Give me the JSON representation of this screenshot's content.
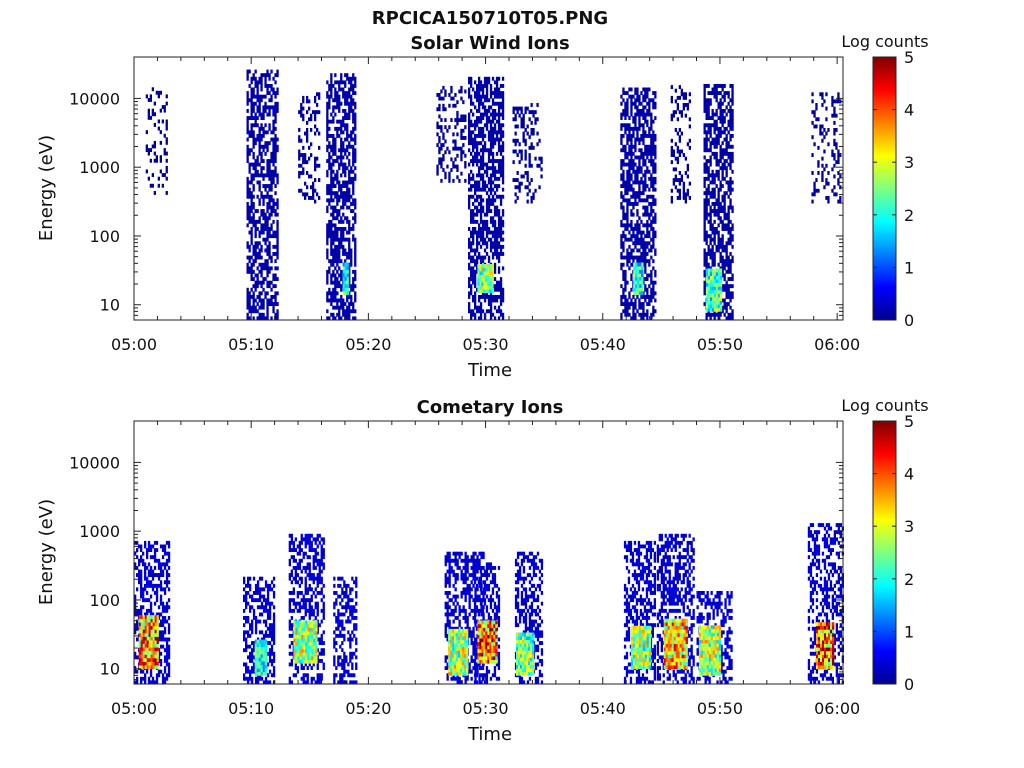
{
  "figure": {
    "title": "RPCICA150710T05.PNG"
  },
  "colormap": {
    "name": "jet",
    "min": 0,
    "max": 5,
    "label": "Log counts",
    "ticks": [
      "0",
      "1",
      "2",
      "3",
      "4",
      "5"
    ]
  },
  "chart_data": [
    {
      "type": "heatmap",
      "title": "Solar Wind Ions",
      "xlabel": "Time",
      "ylabel": "Energy (eV)",
      "x_ticks": [
        "05:00",
        "05:10",
        "05:20",
        "05:30",
        "05:40",
        "05:50",
        "06:00"
      ],
      "x_range_minutes": [
        0,
        60.5
      ],
      "y_scale": "log",
      "y_range": [
        6,
        40000
      ],
      "y_ticks": [
        "10",
        "100",
        "1000",
        "10000"
      ],
      "bursts": [
        {
          "t": [
            1.0,
            2.8
          ],
          "e": [
            400,
            14000
          ],
          "level": 0.15,
          "density": 0.25
        },
        {
          "t": [
            9.6,
            12.2
          ],
          "e": [
            6,
            25000
          ],
          "level": 0.2,
          "density": 0.55
        },
        {
          "t": [
            14.0,
            15.8
          ],
          "e": [
            300,
            12000
          ],
          "level": 0.15,
          "density": 0.3
        },
        {
          "t": [
            16.4,
            18.9
          ],
          "e": [
            6,
            22000
          ],
          "level": 0.2,
          "density": 0.6
        },
        {
          "t": [
            17.8,
            18.2
          ],
          "e": [
            14,
            40
          ],
          "level": 2.0,
          "density": 1.0
        },
        {
          "t": [
            25.8,
            28.3
          ],
          "e": [
            600,
            14000
          ],
          "level": 0.15,
          "density": 0.3
        },
        {
          "t": [
            28.5,
            31.5
          ],
          "e": [
            6,
            20000
          ],
          "level": 0.2,
          "density": 0.6
        },
        {
          "t": [
            29.3,
            30.5
          ],
          "e": [
            15,
            35
          ],
          "level": 2.6,
          "density": 1.0
        },
        {
          "t": [
            32.3,
            34.8
          ],
          "e": [
            300,
            8000
          ],
          "level": 0.15,
          "density": 0.3
        },
        {
          "t": [
            41.5,
            44.5
          ],
          "e": [
            6,
            14000
          ],
          "level": 0.2,
          "density": 0.6
        },
        {
          "t": [
            42.6,
            43.4
          ],
          "e": [
            14,
            40
          ],
          "level": 2.0,
          "density": 1.0
        },
        {
          "t": [
            45.8,
            47.5
          ],
          "e": [
            300,
            14000
          ],
          "level": 0.15,
          "density": 0.3
        },
        {
          "t": [
            48.6,
            51.0
          ],
          "e": [
            6,
            16000
          ],
          "level": 0.2,
          "density": 0.6
        },
        {
          "t": [
            48.8,
            50.0
          ],
          "e": [
            8,
            30
          ],
          "level": 2.2,
          "density": 1.0
        },
        {
          "t": [
            57.8,
            60.2
          ],
          "e": [
            300,
            12000
          ],
          "level": 0.15,
          "density": 0.25
        }
      ]
    },
    {
      "type": "heatmap",
      "title": "Cometary Ions",
      "xlabel": "Time",
      "ylabel": "Energy (eV)",
      "x_ticks": [
        "05:00",
        "05:10",
        "05:20",
        "05:30",
        "05:40",
        "05:50",
        "06:00"
      ],
      "x_range_minutes": [
        0,
        60.5
      ],
      "y_scale": "log",
      "y_range": [
        6,
        40000
      ],
      "y_ticks": [
        "10",
        "100",
        "1000",
        "10000"
      ],
      "bursts": [
        {
          "t": [
            0.0,
            3.0
          ],
          "e": [
            6,
            650
          ],
          "level": 0.4,
          "density": 0.5
        },
        {
          "t": [
            0.4,
            2.0
          ],
          "e": [
            10,
            60
          ],
          "level": 3.6,
          "density": 1.0
        },
        {
          "t": [
            9.3,
            12.0
          ],
          "e": [
            6,
            200
          ],
          "level": 0.4,
          "density": 0.5
        },
        {
          "t": [
            10.3,
            11.2
          ],
          "e": [
            8,
            25
          ],
          "level": 2.0,
          "density": 1.0
        },
        {
          "t": [
            13.2,
            16.2
          ],
          "e": [
            6,
            900
          ],
          "level": 0.4,
          "density": 0.5
        },
        {
          "t": [
            13.6,
            15.5
          ],
          "e": [
            12,
            45
          ],
          "level": 2.7,
          "density": 1.0
        },
        {
          "t": [
            17.0,
            19.0
          ],
          "e": [
            6,
            200
          ],
          "level": 0.4,
          "density": 0.45
        },
        {
          "t": [
            26.5,
            29.8
          ],
          "e": [
            6,
            500
          ],
          "level": 0.4,
          "density": 0.5
        },
        {
          "t": [
            26.8,
            28.5
          ],
          "e": [
            8,
            35
          ],
          "level": 2.7,
          "density": 1.0
        },
        {
          "t": [
            29.0,
            31.2
          ],
          "e": [
            6,
            350
          ],
          "level": 0.4,
          "density": 0.5
        },
        {
          "t": [
            29.3,
            31.0
          ],
          "e": [
            12,
            45
          ],
          "level": 3.7,
          "density": 1.0
        },
        {
          "t": [
            32.5,
            34.8
          ],
          "e": [
            6,
            500
          ],
          "level": 0.4,
          "density": 0.5
        },
        {
          "t": [
            32.6,
            34.0
          ],
          "e": [
            8,
            30
          ],
          "level": 2.5,
          "density": 1.0
        },
        {
          "t": [
            41.8,
            44.5
          ],
          "e": [
            6,
            700
          ],
          "level": 0.4,
          "density": 0.5
        },
        {
          "t": [
            42.4,
            44.0
          ],
          "e": [
            10,
            40
          ],
          "level": 2.6,
          "density": 1.0
        },
        {
          "t": [
            44.6,
            47.8
          ],
          "e": [
            6,
            900
          ],
          "level": 0.4,
          "density": 0.5
        },
        {
          "t": [
            45.2,
            47.2
          ],
          "e": [
            10,
            50
          ],
          "level": 3.3,
          "density": 1.0
        },
        {
          "t": [
            48.0,
            51.0
          ],
          "e": [
            6,
            120
          ],
          "level": 0.4,
          "density": 0.5
        },
        {
          "t": [
            48.2,
            50.0
          ],
          "e": [
            8,
            40
          ],
          "level": 2.7,
          "density": 1.0
        },
        {
          "t": [
            57.5,
            60.5
          ],
          "e": [
            6,
            1200
          ],
          "level": 0.4,
          "density": 0.45
        },
        {
          "t": [
            58.2,
            59.6
          ],
          "e": [
            10,
            45
          ],
          "level": 3.8,
          "density": 1.0
        }
      ]
    }
  ]
}
